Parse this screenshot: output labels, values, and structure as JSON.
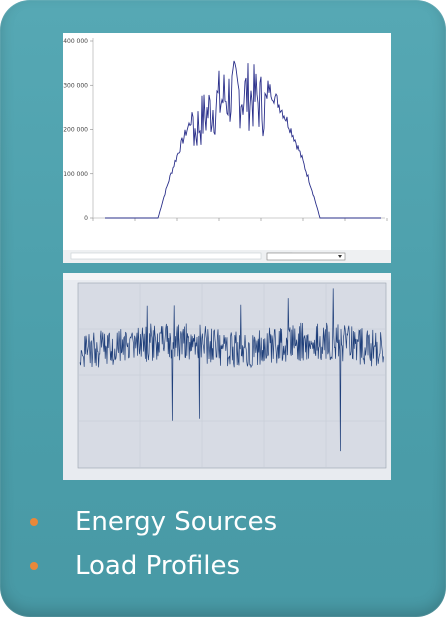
{
  "slide": {
    "bullets": [
      {
        "label": "Energy Sources",
        "bullet_color": "#e8883a"
      },
      {
        "label": "Load Profiles",
        "bullet_color": "#e8883a"
      }
    ],
    "accent_color": "#4c9fab"
  },
  "chart_data": [
    {
      "type": "line",
      "y_tick_labels": [
        "400 000",
        "300 000",
        "200 000",
        "100 000",
        "0"
      ],
      "series_color": "#2a2f8a"
    },
    {
      "type": "line",
      "series_color": "#1f3f7a"
    }
  ]
}
